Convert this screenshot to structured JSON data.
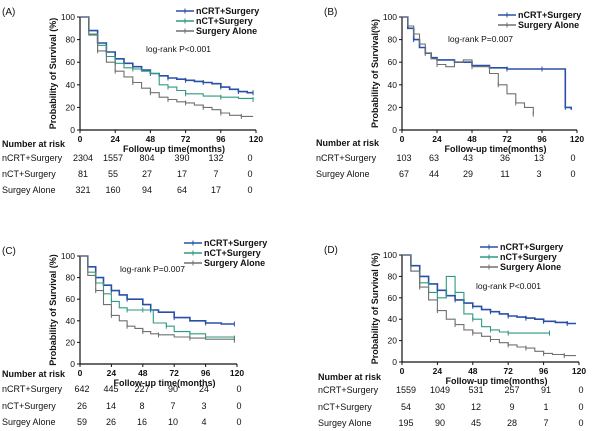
{
  "chart_data": [
    {
      "type": "line",
      "panel_label": "(A)",
      "xlabel": "Follow-up time(months)",
      "ylabel": "Probability of Survival (%)",
      "xlim": [
        0,
        120
      ],
      "ylim": [
        0,
        100
      ],
      "xticks": [
        0,
        24,
        48,
        72,
        96,
        120
      ],
      "yticks": [
        0,
        20,
        40,
        60,
        80,
        100
      ],
      "annotation": "log-rank P<0.001",
      "legend": "top-right",
      "series": [
        {
          "name": "nCRT+Surgery",
          "color": "#2850a8",
          "x": [
            0,
            6,
            12,
            18,
            24,
            30,
            36,
            42,
            48,
            54,
            60,
            66,
            72,
            78,
            84,
            90,
            96,
            102,
            108,
            114,
            118
          ],
          "y": [
            100,
            88,
            77,
            69,
            63,
            59,
            56,
            53,
            50,
            48,
            46,
            45,
            44,
            43,
            42,
            41,
            38,
            36,
            34,
            33,
            33
          ]
        },
        {
          "name": "nCT+Surgery",
          "color": "#2e9a80",
          "x": [
            0,
            6,
            12,
            18,
            24,
            30,
            36,
            42,
            48,
            54,
            60,
            66,
            72,
            84,
            96,
            108,
            118
          ],
          "y": [
            100,
            85,
            75,
            65,
            59,
            55,
            54,
            52,
            50,
            40,
            38,
            35,
            32,
            30,
            29,
            28,
            27
          ]
        },
        {
          "name": "Surgery Alone",
          "color": "#707070",
          "x": [
            0,
            6,
            12,
            18,
            24,
            30,
            36,
            42,
            48,
            54,
            60,
            66,
            72,
            78,
            84,
            90,
            96,
            102,
            110,
            118
          ],
          "y": [
            100,
            84,
            70,
            60,
            52,
            47,
            42,
            37,
            33,
            29,
            27,
            25,
            24,
            22,
            20,
            18,
            15,
            13,
            12,
            12
          ]
        }
      ],
      "risk_table": {
        "title": "Number at risk",
        "rows": [
          {
            "label": "nCRT+Surgery",
            "values": [
              "2304",
              "1557",
              "804",
              "390",
              "132",
              "0"
            ]
          },
          {
            "label": "nCT+Surgery",
            "values": [
              "81",
              "55",
              "27",
              "17",
              "7",
              "0"
            ]
          },
          {
            "label": "Surgey Alone",
            "values": [
              "321",
              "160",
              "94",
              "64",
              "17",
              "0"
            ]
          }
        ]
      }
    },
    {
      "type": "line",
      "panel_label": "(B)",
      "xlabel": "Follow-up time(months)",
      "ylabel": "Probability of Survival(%)",
      "xlim": [
        0,
        120
      ],
      "ylim": [
        0,
        100
      ],
      "xticks": [
        0,
        24,
        48,
        72,
        96,
        120
      ],
      "yticks": [
        0,
        20,
        40,
        60,
        80,
        100
      ],
      "annotation": "log-rank P=0.007",
      "legend": "top-right",
      "series": [
        {
          "name": "nCRT+Surgery",
          "color": "#2850a8",
          "x": [
            0,
            4,
            8,
            12,
            16,
            20,
            24,
            36,
            48,
            60,
            72,
            84,
            96,
            104,
            112,
            116
          ],
          "y": [
            100,
            90,
            80,
            73,
            68,
            64,
            62,
            60,
            57,
            55,
            54,
            54,
            54,
            54,
            20,
            18
          ]
        },
        {
          "name": "Surgery Alone",
          "color": "#707070",
          "x": [
            0,
            4,
            8,
            12,
            16,
            20,
            24,
            30,
            36,
            42,
            48,
            60,
            66,
            72,
            78,
            84,
            90
          ],
          "y": [
            100,
            92,
            85,
            76,
            68,
            63,
            58,
            56,
            60,
            62,
            56,
            50,
            40,
            32,
            24,
            20,
            14
          ]
        }
      ],
      "risk_table": {
        "title": "Number at risk",
        "rows": [
          {
            "label": "nCRT+Surgery",
            "values": [
              "103",
              "63",
              "43",
              "36",
              "13",
              "0"
            ]
          },
          {
            "label": "Surgey Alone",
            "values": [
              "67",
              "44",
              "29",
              "11",
              "3",
              "0"
            ]
          }
        ]
      }
    },
    {
      "type": "line",
      "panel_label": "(C)",
      "xlabel": "Follow-up time(months)",
      "ylabel": "Probability of Survival (%)",
      "xlim": [
        0,
        120
      ],
      "ylim": [
        0,
        100
      ],
      "xticks": [
        0,
        24,
        48,
        72,
        96,
        120
      ],
      "yticks": [
        0,
        20,
        40,
        60,
        80,
        100
      ],
      "annotation": "log-rank P=0.007",
      "legend": "top-right",
      "series": [
        {
          "name": "nCRT+Surgery",
          "color": "#2850a8",
          "x": [
            0,
            6,
            12,
            18,
            24,
            30,
            36,
            48,
            54,
            60,
            72,
            84,
            96,
            108,
            118
          ],
          "y": [
            100,
            90,
            80,
            73,
            68,
            64,
            60,
            55,
            50,
            48,
            43,
            40,
            38,
            37,
            37
          ]
        },
        {
          "name": "nCT+Surgery",
          "color": "#2e9a80",
          "x": [
            0,
            6,
            12,
            18,
            24,
            30,
            36,
            42,
            48,
            56,
            66,
            72,
            84,
            96,
            118
          ],
          "y": [
            100,
            85,
            75,
            65,
            58,
            52,
            50,
            50,
            50,
            38,
            35,
            30,
            28,
            25,
            24
          ]
        },
        {
          "name": "Surgery Alone",
          "color": "#707070",
          "x": [
            0,
            6,
            12,
            18,
            24,
            30,
            36,
            42,
            48,
            54,
            60,
            72,
            84,
            96,
            118
          ],
          "y": [
            100,
            82,
            68,
            55,
            45,
            40,
            35,
            33,
            30,
            28,
            27,
            25,
            24,
            23,
            22
          ]
        }
      ],
      "risk_table": {
        "title": "Number at risk",
        "rows": [
          {
            "label": "nCRT+Surgery",
            "values": [
              "642",
              "445",
              "227",
              "90",
              "24",
              "0"
            ]
          },
          {
            "label": "nCT+Surgery",
            "values": [
              "26",
              "14",
              "8",
              "7",
              "3",
              "0"
            ]
          },
          {
            "label": "Surgey Alone",
            "values": [
              "59",
              "26",
              "16",
              "10",
              "4",
              "0"
            ]
          }
        ]
      }
    },
    {
      "type": "line",
      "panel_label": "(D)",
      "xlabel": "Follow-up time(months)",
      "ylabel": "Probability of Survival (%)",
      "xlim": [
        0,
        120
      ],
      "ylim": [
        0,
        100
      ],
      "xticks": [
        0,
        24,
        48,
        72,
        96,
        120
      ],
      "yticks": [
        0,
        20,
        40,
        60,
        80,
        100
      ],
      "annotation": "log-rank P<0.001",
      "legend": "top-right",
      "series": [
        {
          "name": "nCRT+Surgery",
          "color": "#2850a8",
          "x": [
            0,
            6,
            12,
            18,
            24,
            30,
            36,
            42,
            48,
            54,
            60,
            66,
            72,
            78,
            84,
            90,
            96,
            104,
            112,
            118
          ],
          "y": [
            100,
            90,
            80,
            73,
            67,
            62,
            58,
            55,
            52,
            49,
            47,
            45,
            43,
            42,
            41,
            40,
            38,
            37,
            36,
            36
          ]
        },
        {
          "name": "nCT+Surgery",
          "color": "#2e9a80",
          "x": [
            0,
            6,
            12,
            18,
            24,
            30,
            36,
            42,
            48,
            54,
            60,
            66,
            72,
            96,
            100
          ],
          "y": [
            100,
            85,
            74,
            65,
            60,
            80,
            65,
            45,
            40,
            33,
            30,
            28,
            27,
            27,
            27
          ]
        },
        {
          "name": "Surgery Alone",
          "color": "#707070",
          "x": [
            0,
            6,
            12,
            18,
            24,
            30,
            36,
            42,
            48,
            54,
            60,
            66,
            72,
            78,
            84,
            90,
            96,
            102,
            110,
            118
          ],
          "y": [
            100,
            85,
            70,
            58,
            48,
            40,
            35,
            30,
            27,
            24,
            21,
            18,
            16,
            14,
            13,
            10,
            8,
            7,
            6,
            6
          ]
        }
      ],
      "risk_table": {
        "title": "Number at risk",
        "rows": [
          {
            "label": "nCRT+Surgery",
            "values": [
              "1559",
              "1049",
              "531",
              "257",
              "91",
              "0"
            ]
          },
          {
            "label": "nCT+Surgery",
            "values": [
              "54",
              "30",
              "12",
              "9",
              "1",
              "0"
            ]
          },
          {
            "label": "Surgey Alone",
            "values": [
              "195",
              "90",
              "45",
              "28",
              "7",
              "0"
            ]
          }
        ]
      }
    }
  ]
}
